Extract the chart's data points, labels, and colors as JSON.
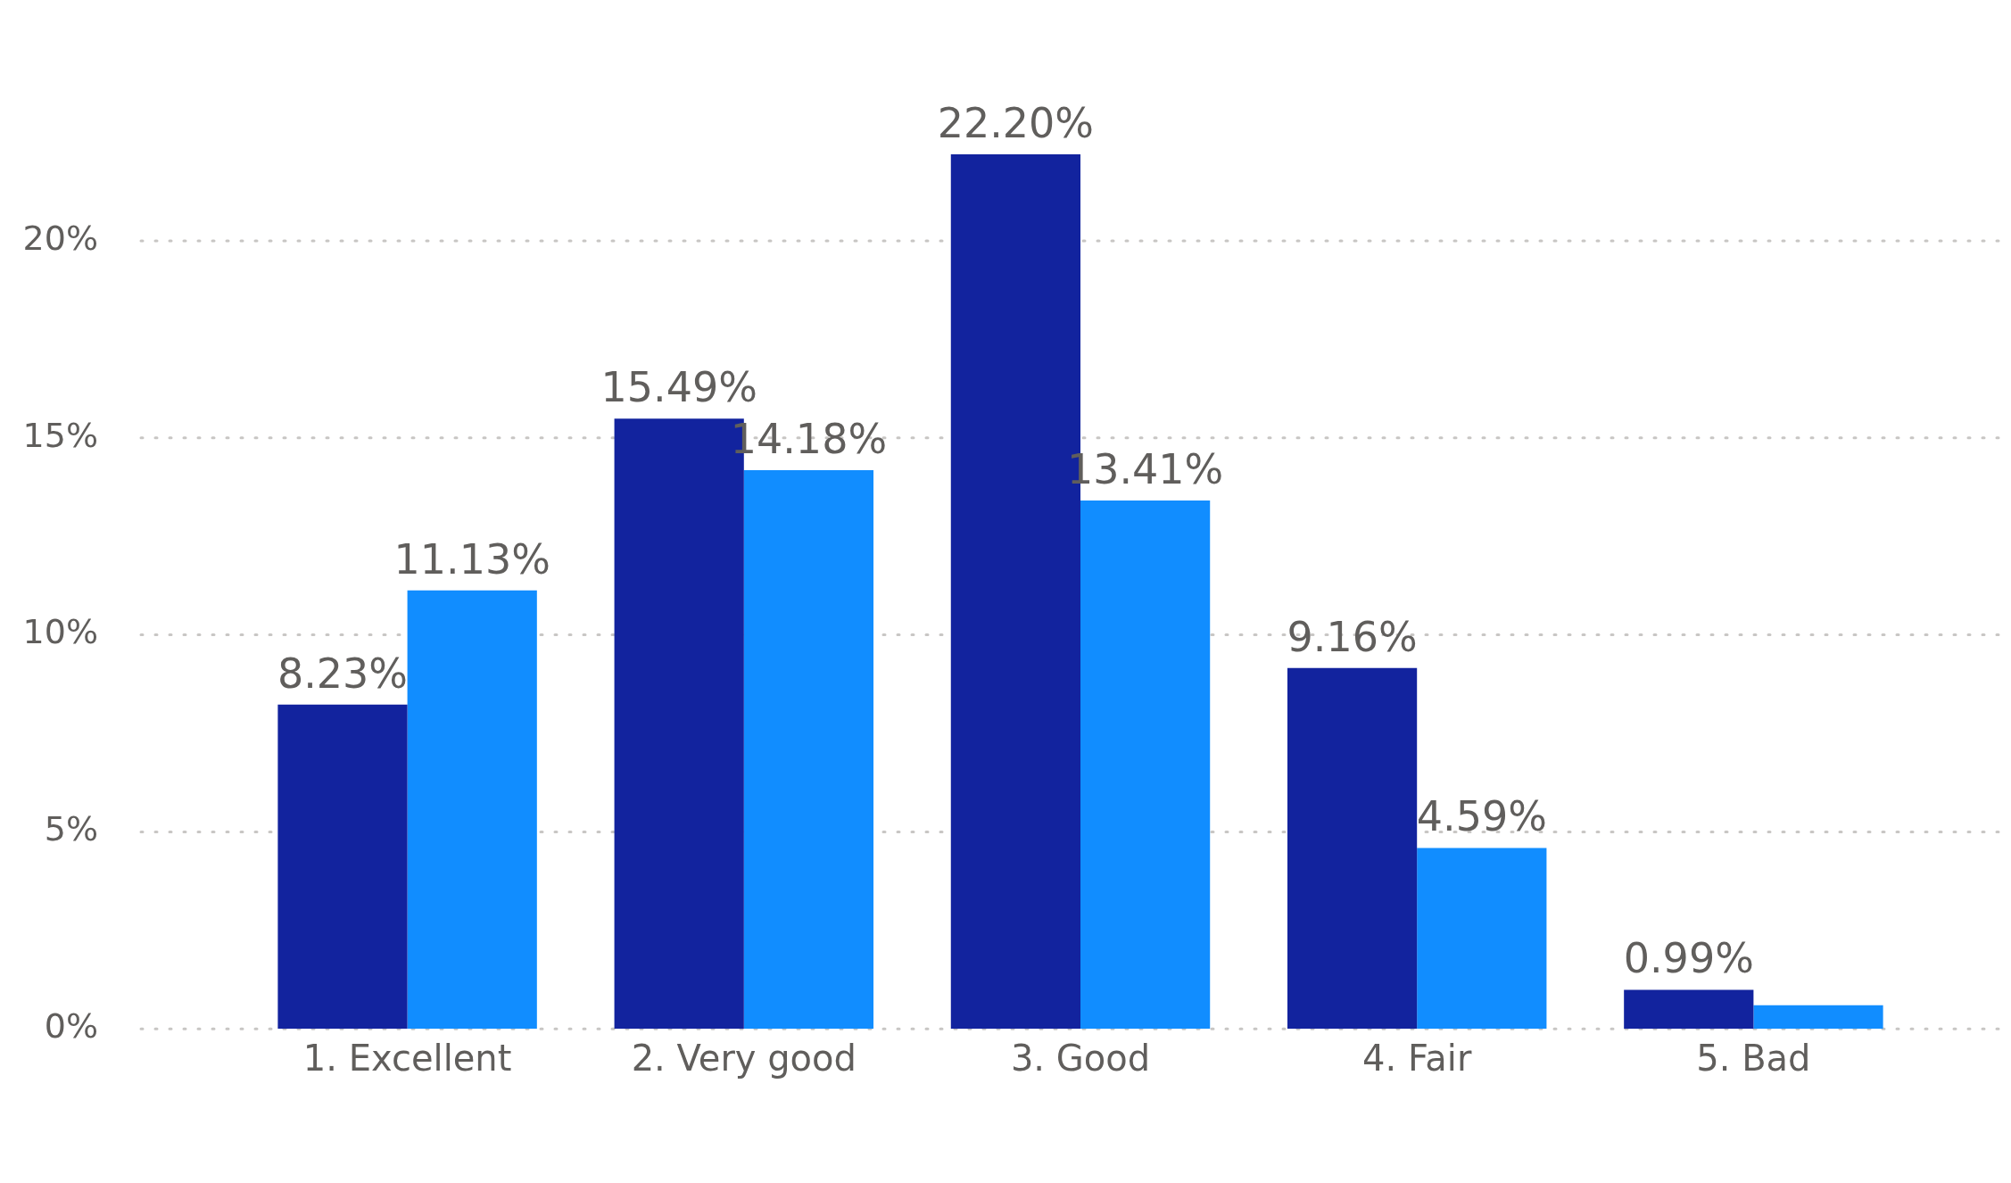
{
  "chart_data": {
    "type": "bar",
    "categories": [
      "1. Excellent",
      "2. Very good",
      "3. Good",
      "4. Fair",
      "5. Bad"
    ],
    "series": [
      {
        "color": "#12239e",
        "values": [
          8.23,
          15.49,
          22.2,
          9.16,
          0.99
        ],
        "value_labels": [
          "8.23%",
          "15.49%",
          "22.20%",
          "9.16%",
          "0.99%"
        ]
      },
      {
        "color": "#118dff",
        "values": [
          11.13,
          14.18,
          13.41,
          4.59,
          0.6
        ],
        "value_labels": [
          "11.13%",
          "14.18%",
          "13.41%",
          "4.59%",
          null
        ]
      }
    ],
    "ylim": [
      0,
      22.2
    ],
    "yticks": [
      {
        "value": 0,
        "label": "0%"
      },
      {
        "value": 5,
        "label": "5%"
      },
      {
        "value": 10,
        "label": "10%"
      },
      {
        "value": 15,
        "label": "15%"
      },
      {
        "value": 20,
        "label": "20%"
      }
    ],
    "grid": "y",
    "legend": false
  }
}
